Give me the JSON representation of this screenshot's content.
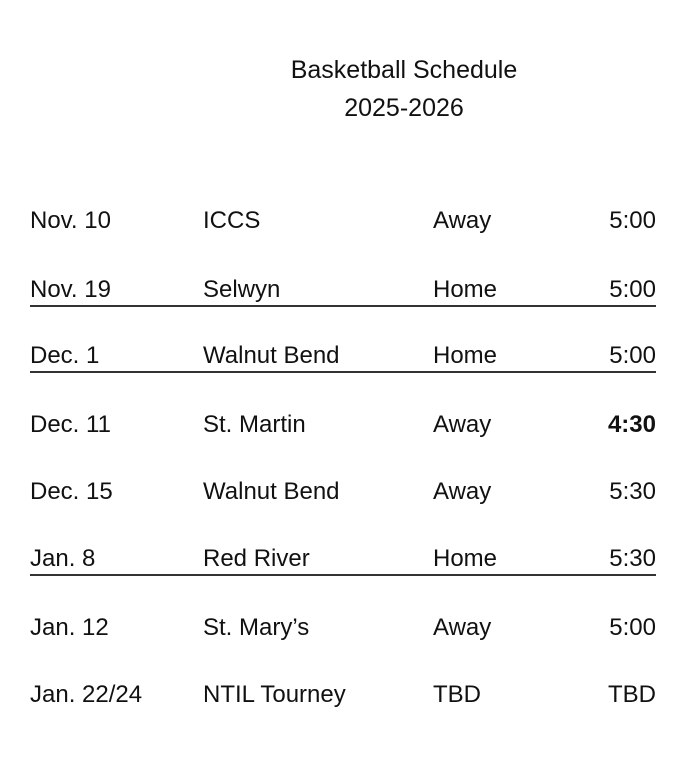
{
  "title": "Basketball Schedule",
  "season": "2025-2026",
  "games": [
    {
      "date": "Nov. 10",
      "opponent": "ICCS",
      "location": "Away",
      "time": "5:00",
      "underlined": false,
      "bold_time": false
    },
    {
      "date": "Nov. 19",
      "opponent": "Selwyn",
      "location": "Home",
      "time": "5:00",
      "underlined": true,
      "bold_time": false
    },
    {
      "date": "Dec. 1",
      "opponent": "Walnut Bend",
      "location": "Home",
      "time": "5:00",
      "underlined": true,
      "bold_time": false
    },
    {
      "date": "Dec. 11",
      "opponent": "St. Martin",
      "location": "Away",
      "time": "4:30",
      "underlined": false,
      "bold_time": true
    },
    {
      "date": "Dec. 15",
      "opponent": "Walnut Bend",
      "location": "Away",
      "time": "5:30",
      "underlined": false,
      "bold_time": false
    },
    {
      "date": "Jan. 8",
      "opponent": "Red River",
      "location": "Home",
      "time": "5:30",
      "underlined": true,
      "bold_time": false
    },
    {
      "date": "Jan. 12",
      "opponent": "St. Mary’s",
      "location": "Away",
      "time": "5:00",
      "underlined": false,
      "bold_time": false
    },
    {
      "date": "Jan. 22/24",
      "opponent": "NTIL Tourney",
      "location": "TBD",
      "time": "TBD",
      "underlined": false,
      "bold_time": false
    }
  ]
}
